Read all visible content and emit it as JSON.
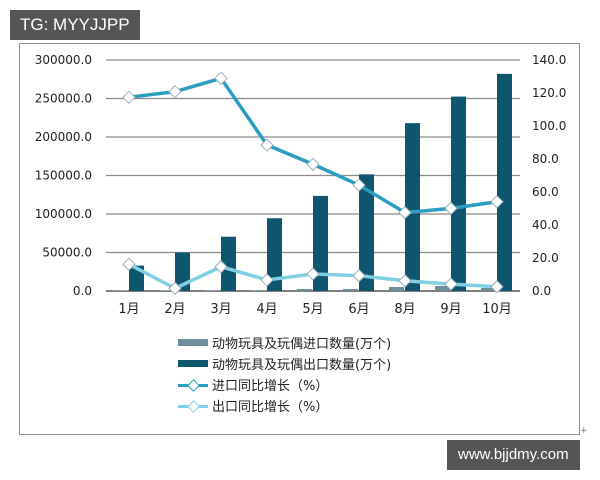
{
  "header": {
    "tag": "TG: MYYJJPP"
  },
  "footer": {
    "site": "www.bjjdmy.com",
    "corner_mark": "+"
  },
  "colors": {
    "import_qty": "#6e8e9c",
    "export_qty": "#0e5670",
    "import_growth": "#2a9ec0",
    "export_growth": "#7fd0e4",
    "grid": "#8a8a8a"
  },
  "legend": [
    {
      "label": "动物玩具及玩偶进口数量(万个)",
      "type": "bar",
      "color_key": "import_qty"
    },
    {
      "label": "动物玩具及玩偶出口数量(万个)",
      "type": "bar",
      "color_key": "export_qty"
    },
    {
      "label": "进口同比增长（%）",
      "type": "line",
      "color_key": "import_growth"
    },
    {
      "label": "出口同比增长（%）",
      "type": "line",
      "color_key": "export_growth"
    }
  ],
  "chart_data": {
    "type": "bar",
    "title": "",
    "xlabel": "",
    "ylabel": "",
    "categories": [
      "1月",
      "2月",
      "3月",
      "4月",
      "5月",
      "6月",
      "8月",
      "9月",
      "10月"
    ],
    "left_axis": {
      "ticks": [
        "300000.0",
        "250000.0",
        "200000.0",
        "150000.0",
        "100000.0",
        "50000.0",
        "0.0"
      ],
      "ylim": [
        0,
        300000
      ]
    },
    "right_axis": {
      "ticks": [
        "140.0",
        "120.0",
        "100.0",
        "80.0",
        "60.0",
        "40.0",
        "20.0",
        "0.0"
      ],
      "ylim": [
        0,
        140
      ]
    },
    "grid": true,
    "legend_position": "bottom",
    "series": [
      {
        "name": "动物玩具及玩偶进口数量(万个)",
        "type": "bar",
        "axis": "left",
        "values": [
          800,
          800,
          900,
          1000,
          2600,
          2600,
          5200,
          6500,
          3900
        ]
      },
      {
        "name": "动物玩具及玩偶出口数量(万个)",
        "type": "bar",
        "axis": "left",
        "values": [
          33000,
          50000,
          70500,
          94500,
          123500,
          151500,
          218000,
          252500,
          282000
        ]
      },
      {
        "name": "进口同比增长（%）",
        "type": "line",
        "axis": "right",
        "values": [
          117.4,
          120.8,
          128.9,
          88.5,
          76.8,
          64.2,
          47.5,
          50.1,
          54.1
        ]
      },
      {
        "name": "出口同比增长（%）",
        "type": "line",
        "axis": "right",
        "values": [
          16.2,
          1.6,
          14.7,
          6.7,
          10.3,
          9.3,
          6.2,
          4.2,
          2.6
        ]
      }
    ]
  }
}
